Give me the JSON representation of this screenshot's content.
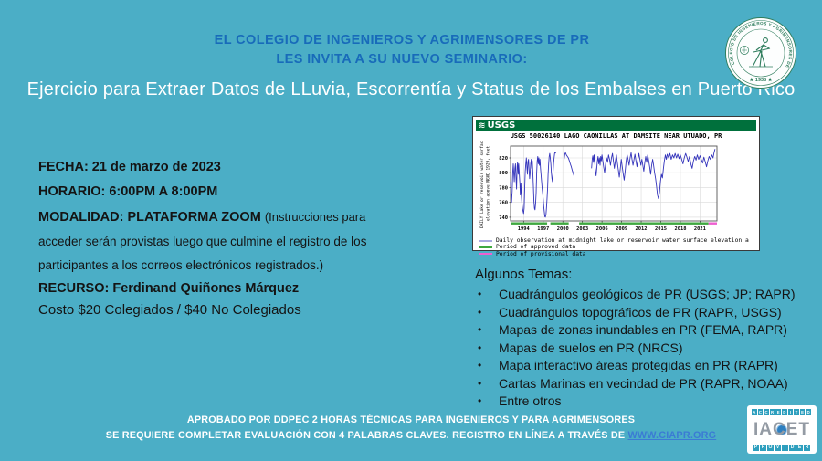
{
  "page": {
    "bg_color": "#4BAEC6",
    "header_color": "#186BBA"
  },
  "header": {
    "line1": "EL COLEGIO DE INGENIEROS Y AGRIMENSORES DE PR",
    "line2": "LES INVITA A SU NUEVO SEMINARIO:"
  },
  "title": "Ejercicio para Extraer Datos de LLuvia, Escorrentía y Status de los Embalses en Puerto Rico",
  "details": {
    "fecha": "FECHA: 21 de marzo de 2023",
    "horario": "HORARIO: 6:00PM A 8:00PM",
    "modalidad_bold": "MODALIDAD: PLATAFORMA ZOOM ",
    "modalidad_note": "(Instrucciones para",
    "note_line2": "acceder serán provistas luego que culmine el registro de los",
    "note_line3": "participantes a los correos electrónicos registrados.)",
    "recurso": "RECURSO: Ferdinand Quiñones Márquez",
    "costo": "Costo $20 Colegiados / $40 No Colegiados"
  },
  "topics": {
    "heading": "Algunos Temas:",
    "bullet_glyph": "•",
    "items": [
      "Cuadrángulos geológicos de PR (USGS; JP; RAPR)",
      "Cuadrángulos topográficos de PR (RAPR, USGS)",
      "Mapas de zonas inundables en PR (FEMA, RAPR)",
      "Mapas de suelos en PR (NRCS)",
      "Mapa interactivo áreas protegidas en PR (RAPR)",
      "Cartas Marinas en vecindad de PR (RAPR, NOAA)",
      "Entre otros"
    ]
  },
  "footer": {
    "line1": "APROBADO POR DDPEC 2 HORAS TÉCNICAS PARA INGENIEROS Y PARA AGRIMENSORES",
    "line2_text": "SE REQUIERE COMPLETAR EVALUACIÓN CON 4 PALABRAS CLAVES. REGISTRO EN LÍNEA A TRAVÉS DE ",
    "link_text": "WWW.CIAPR.ORG",
    "link_color": "#3B7BD4"
  },
  "seal": {
    "ring_text": "COLEGIO DE INGENIEROS Y AGRIMENSORES DE PUERTO RICO",
    "year_text": "★ 1938 ★",
    "color": "#2F7D5D"
  },
  "iacet": {
    "top_text": "ACCREDITED",
    "name_text": "IACET",
    "bottom_text": "PROVIDER",
    "box_color": "#2E9FBE",
    "name_color": "#949BA4"
  },
  "chart_data": {
    "type": "line",
    "banner": {
      "logo_text": "USGS",
      "color": "#00703C"
    },
    "title": "USGS 50026140 LAGO CAONILLAS AT DAMSITE NEAR UTUADO, PR",
    "ylabel_lines": [
      "DAILY Lake or reservoir water surface",
      "elevation above NGVD 1929, feet"
    ],
    "x_ticks": [
      1994,
      1997,
      2000,
      2003,
      2006,
      2009,
      2012,
      2015,
      2018,
      2021
    ],
    "y_ticks": [
      740,
      760,
      780,
      800,
      820
    ],
    "xlim": [
      1992,
      2023.6
    ],
    "ylim": [
      735,
      836
    ],
    "grid": true,
    "line_color": "#3333BB",
    "approved_segments": [
      [
        1992,
        1997.6
      ],
      [
        1998.1,
        2000.9
      ],
      [
        2002.5,
        2022.3
      ]
    ],
    "provisional_segments": [
      [
        2022.3,
        2023.6
      ]
    ],
    "legend": [
      {
        "label": "Daily observation at midnight lake or reservoir water surface elevation a",
        "color": "#A9A9E0"
      },
      {
        "label": "Period of approved data",
        "color": "#3FA83F"
      },
      {
        "label": "Period of provisional data",
        "color": "#EE5FD0"
      }
    ],
    "segments": [
      [
        [
          1992.0,
          788
        ],
        [
          1992.08,
          772
        ],
        [
          1992.15,
          760
        ],
        [
          1992.25,
          775
        ],
        [
          1992.33,
          800
        ],
        [
          1992.42,
          812
        ],
        [
          1992.5,
          798
        ],
        [
          1992.58,
          788
        ],
        [
          1992.67,
          806
        ],
        [
          1992.75,
          812
        ],
        [
          1992.83,
          795
        ],
        [
          1992.92,
          778
        ],
        [
          1993.0,
          808
        ],
        [
          1993.08,
          814
        ],
        [
          1993.17,
          798
        ],
        [
          1993.25,
          812
        ],
        [
          1993.33,
          800
        ],
        [
          1993.42,
          786
        ],
        [
          1993.5,
          770
        ],
        [
          1993.58,
          786
        ],
        [
          1993.67,
          768
        ],
        [
          1993.75,
          758
        ],
        [
          1993.83,
          752
        ],
        [
          1993.92,
          748
        ],
        [
          1994.0,
          745
        ],
        [
          1994.08,
          752
        ],
        [
          1994.17,
          780
        ],
        [
          1994.25,
          802
        ],
        [
          1994.33,
          812
        ],
        [
          1994.42,
          820
        ],
        [
          1994.5,
          808
        ],
        [
          1994.58,
          798
        ],
        [
          1994.67,
          815
        ],
        [
          1994.75,
          818
        ],
        [
          1994.83,
          806
        ],
        [
          1994.92,
          792
        ],
        [
          1995.0,
          800
        ],
        [
          1995.08,
          812
        ],
        [
          1995.17,
          818
        ],
        [
          1995.25,
          806
        ],
        [
          1995.33,
          816
        ],
        [
          1995.42,
          798
        ],
        [
          1995.5,
          782
        ],
        [
          1995.58,
          762
        ],
        [
          1995.67,
          752
        ],
        [
          1995.75,
          750
        ],
        [
          1995.83,
          758
        ],
        [
          1995.92,
          772
        ],
        [
          1996.0,
          800
        ],
        [
          1996.08,
          816
        ],
        [
          1996.17,
          822
        ],
        [
          1996.25,
          812
        ],
        [
          1996.33,
          820
        ],
        [
          1996.42,
          810
        ],
        [
          1996.5,
          818
        ],
        [
          1996.58,
          806
        ],
        [
          1996.67,
          797
        ],
        [
          1996.75,
          788
        ],
        [
          1996.83,
          780
        ],
        [
          1996.92,
          772
        ],
        [
          1997.0,
          764
        ],
        [
          1997.08,
          755
        ],
        [
          1997.17,
          747
        ],
        [
          1997.25,
          741
        ],
        [
          1997.33,
          740
        ],
        [
          1997.42,
          744
        ],
        [
          1997.5,
          752
        ],
        [
          1997.58,
          764
        ],
        [
          1997.67,
          780
        ],
        [
          1997.75,
          798
        ],
        [
          1997.83,
          812
        ],
        [
          1997.92,
          822
        ],
        [
          1998.0,
          826
        ],
        [
          1998.08,
          820
        ],
        [
          1998.17,
          812
        ],
        [
          1998.25,
          800
        ],
        [
          1998.33,
          792
        ],
        [
          1998.42,
          788
        ],
        [
          1998.5,
          800
        ],
        [
          1998.58,
          812
        ],
        [
          1998.67,
          820
        ],
        [
          1998.75,
          826
        ],
        [
          1998.83,
          828
        ],
        [
          1998.92,
          826
        ]
      ],
      [
        [
          2000.2,
          818
        ],
        [
          2000.3,
          825
        ],
        [
          2000.4,
          827
        ],
        [
          2000.55,
          824
        ],
        [
          2000.7,
          822
        ],
        [
          2000.85,
          820
        ],
        [
          2001.0,
          816
        ],
        [
          2001.15,
          812
        ],
        [
          2001.3,
          808
        ],
        [
          2001.45,
          803
        ],
        [
          2001.6,
          799
        ],
        [
          2001.7,
          796
        ]
      ],
      [
        [
          2004.4,
          806
        ],
        [
          2004.5,
          818
        ],
        [
          2004.6,
          823
        ],
        [
          2004.7,
          814
        ],
        [
          2004.8,
          824
        ],
        [
          2004.9,
          812
        ],
        [
          2005.0,
          802
        ],
        [
          2005.1,
          796
        ],
        [
          2005.2,
          806
        ],
        [
          2005.3,
          816
        ],
        [
          2005.4,
          822
        ],
        [
          2005.5,
          812
        ],
        [
          2005.6,
          820
        ],
        [
          2005.7,
          810
        ],
        [
          2005.8,
          822
        ],
        [
          2005.9,
          816
        ],
        [
          2006.0,
          824
        ],
        [
          2006.1,
          818
        ],
        [
          2006.25,
          808
        ],
        [
          2006.4,
          800
        ],
        [
          2006.55,
          812
        ],
        [
          2006.7,
          820
        ],
        [
          2006.85,
          814
        ],
        [
          2007.0,
          824
        ],
        [
          2007.15,
          818
        ],
        [
          2007.3,
          810
        ],
        [
          2007.45,
          820
        ],
        [
          2007.6,
          826
        ],
        [
          2007.75,
          816
        ],
        [
          2007.9,
          806
        ],
        [
          2008.05,
          816
        ],
        [
          2008.2,
          824
        ],
        [
          2008.35,
          814
        ],
        [
          2008.5,
          804
        ],
        [
          2008.65,
          794
        ],
        [
          2008.8,
          806
        ],
        [
          2008.95,
          818
        ],
        [
          2009.1,
          808
        ],
        [
          2009.25,
          798
        ],
        [
          2009.4,
          790
        ],
        [
          2009.55,
          802
        ],
        [
          2009.7,
          816
        ],
        [
          2009.85,
          824
        ],
        [
          2010.0,
          818
        ],
        [
          2010.15,
          810
        ],
        [
          2010.3,
          820
        ],
        [
          2010.45,
          827
        ],
        [
          2010.6,
          818
        ],
        [
          2010.75,
          810
        ],
        [
          2010.9,
          818
        ],
        [
          2011.05,
          825
        ],
        [
          2011.2,
          816
        ],
        [
          2011.35,
          808
        ],
        [
          2011.5,
          818
        ],
        [
          2011.65,
          826
        ],
        [
          2011.8,
          818
        ],
        [
          2011.95,
          810
        ],
        [
          2012.1,
          818
        ],
        [
          2012.25,
          810
        ],
        [
          2012.4,
          802
        ],
        [
          2012.55,
          814
        ],
        [
          2012.7,
          822
        ],
        [
          2012.85,
          814
        ],
        [
          2013.0,
          824
        ],
        [
          2013.15,
          816
        ],
        [
          2013.3,
          808
        ],
        [
          2013.45,
          798
        ],
        [
          2013.6,
          810
        ],
        [
          2013.75,
          818
        ],
        [
          2013.9,
          810
        ],
        [
          2014.05,
          800
        ],
        [
          2014.2,
          792
        ],
        [
          2014.35,
          782
        ],
        [
          2014.5,
          770
        ],
        [
          2014.65,
          765
        ],
        [
          2014.8,
          774
        ],
        [
          2014.95,
          788
        ],
        [
          2015.1,
          798
        ],
        [
          2015.25,
          793
        ],
        [
          2015.4,
          806
        ],
        [
          2015.55,
          816
        ],
        [
          2015.7,
          824
        ],
        [
          2015.85,
          818
        ],
        [
          2016.0,
          825
        ],
        [
          2016.2,
          820
        ],
        [
          2016.4,
          826
        ],
        [
          2016.6,
          818
        ],
        [
          2016.8,
          824
        ],
        [
          2017.0,
          820
        ],
        [
          2017.2,
          826
        ],
        [
          2017.4,
          820
        ],
        [
          2017.6,
          825
        ],
        [
          2017.8,
          819
        ],
        [
          2018.0,
          824
        ],
        [
          2018.2,
          818
        ],
        [
          2018.4,
          812
        ],
        [
          2018.6,
          820
        ],
        [
          2018.8,
          826
        ],
        [
          2019.0,
          821
        ],
        [
          2019.2,
          815
        ],
        [
          2019.4,
          822
        ],
        [
          2019.6,
          812
        ],
        [
          2019.8,
          806
        ],
        [
          2020.0,
          816
        ],
        [
          2020.2,
          822
        ],
        [
          2020.4,
          817
        ],
        [
          2020.6,
          824
        ],
        [
          2020.8,
          818
        ],
        [
          2021.0,
          823
        ],
        [
          2021.2,
          818
        ],
        [
          2021.4,
          813
        ],
        [
          2021.6,
          821
        ],
        [
          2021.8,
          815
        ],
        [
          2022.0,
          808
        ],
        [
          2022.2,
          816
        ],
        [
          2022.4,
          822
        ],
        [
          2022.6,
          818
        ],
        [
          2022.8,
          824
        ],
        [
          2023.0,
          820
        ],
        [
          2023.15,
          827
        ],
        [
          2023.3,
          832
        ]
      ]
    ]
  }
}
